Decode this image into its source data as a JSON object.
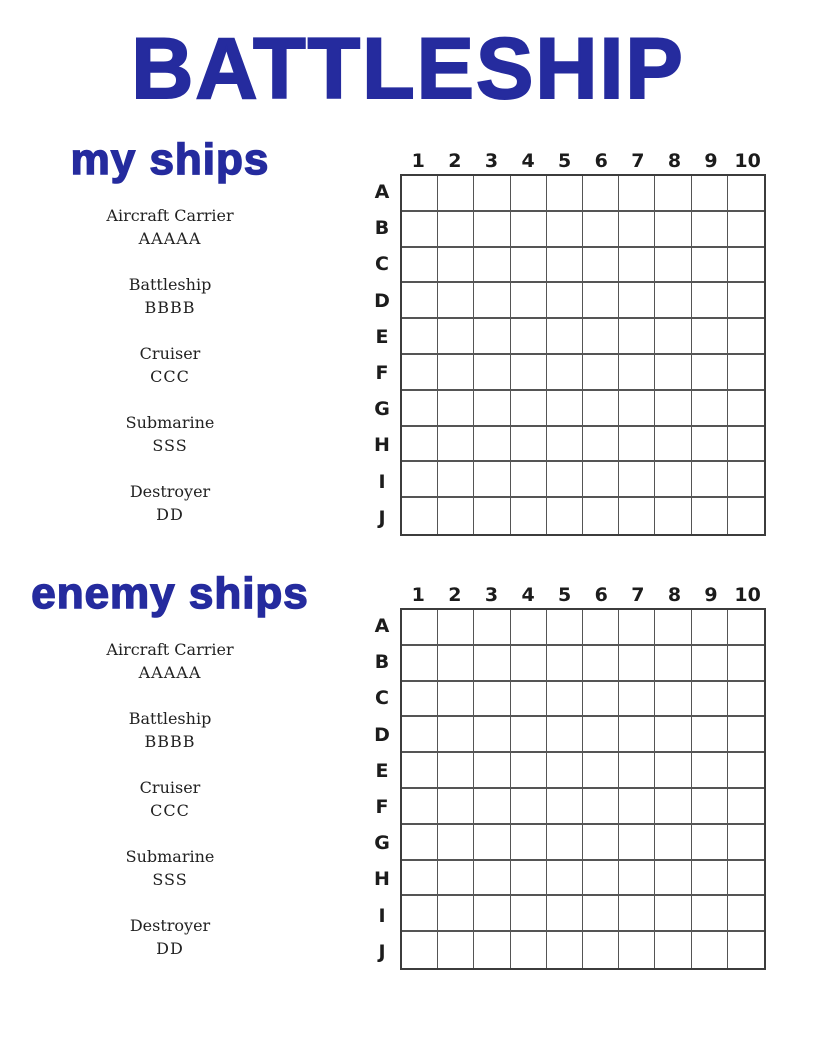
{
  "title": "BATTLESHIP",
  "colors": {
    "accent_blue": "#252B9E",
    "label_dark": "#1c1c1c",
    "grid_line": "#555555",
    "grid_border": "#3c3c3c"
  },
  "boards": [
    {
      "heading": "my ships",
      "ships": [
        {
          "name": "Aircraft Carrier",
          "code": "AAAAA"
        },
        {
          "name": "Battleship",
          "code": "BBBB"
        },
        {
          "name": "Cruiser",
          "code": "CCC"
        },
        {
          "name": "Submarine",
          "code": "SSS"
        },
        {
          "name": "Destroyer",
          "code": "DD"
        }
      ],
      "columns": [
        "1",
        "2",
        "3",
        "4",
        "5",
        "6",
        "7",
        "8",
        "9",
        "10"
      ],
      "rows": [
        "A",
        "B",
        "C",
        "D",
        "E",
        "F",
        "G",
        "H",
        "I",
        "J"
      ]
    },
    {
      "heading": "enemy ships",
      "ships": [
        {
          "name": "Aircraft Carrier",
          "code": "AAAAA"
        },
        {
          "name": "Battleship",
          "code": "BBBB"
        },
        {
          "name": "Cruiser",
          "code": "CCC"
        },
        {
          "name": "Submarine",
          "code": "SSS"
        },
        {
          "name": "Destroyer",
          "code": "DD"
        }
      ],
      "columns": [
        "1",
        "2",
        "3",
        "4",
        "5",
        "6",
        "7",
        "8",
        "9",
        "10"
      ],
      "rows": [
        "A",
        "B",
        "C",
        "D",
        "E",
        "F",
        "G",
        "H",
        "I",
        "J"
      ]
    }
  ]
}
